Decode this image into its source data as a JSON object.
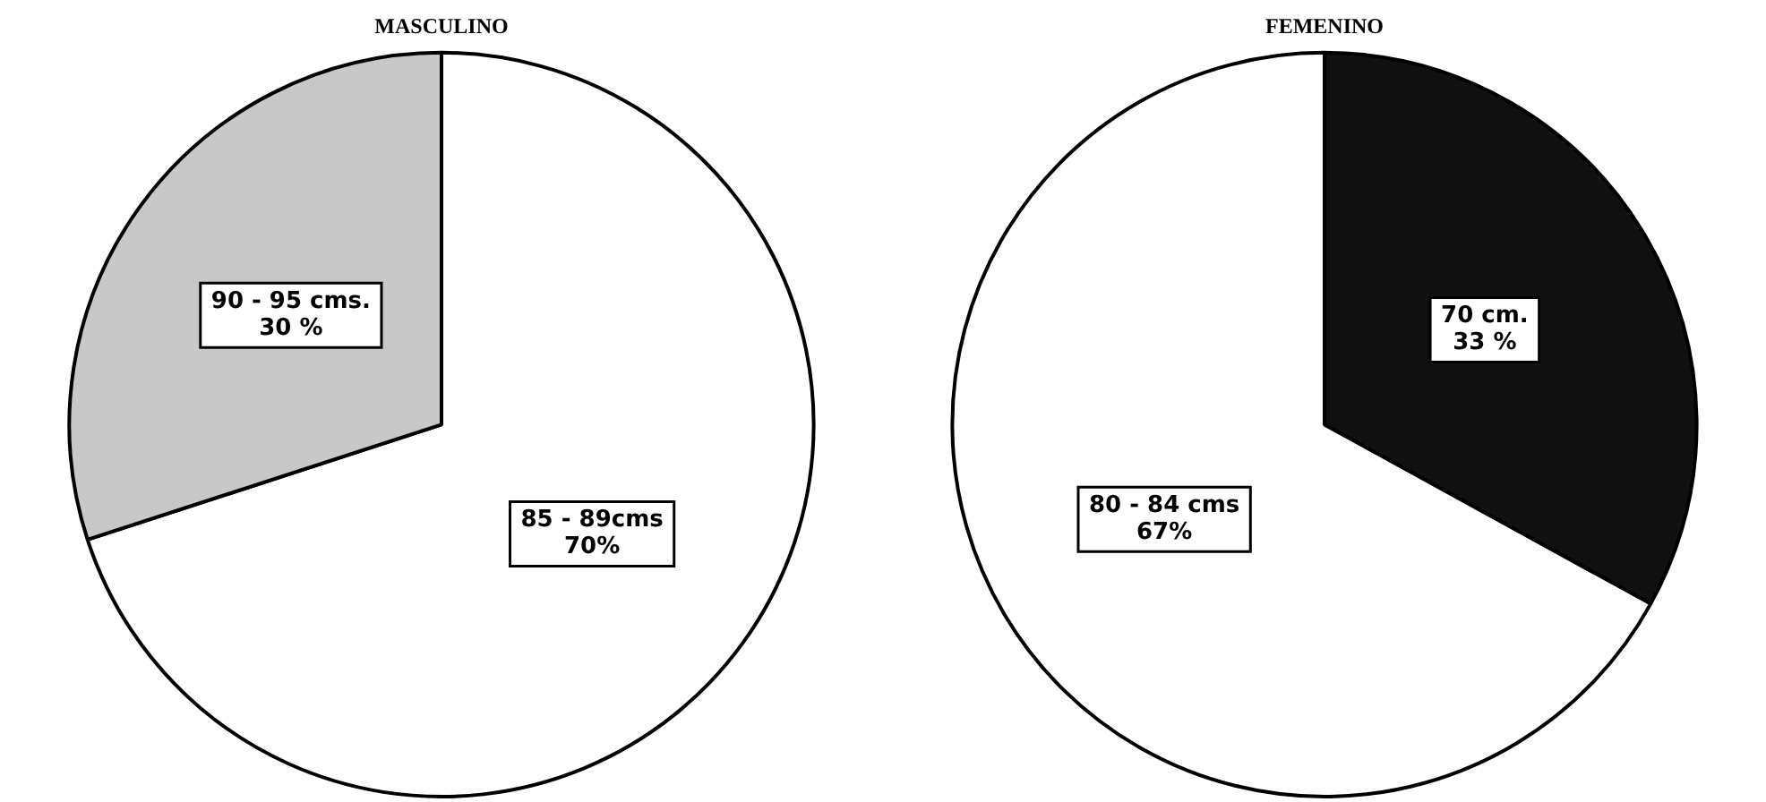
{
  "chart_data": [
    {
      "type": "pie",
      "title": "MASCULINO",
      "categories": [
        "85 - 89cms",
        "90 - 95 cms."
      ],
      "values": [
        70,
        30
      ],
      "colors": [
        "#ffffff",
        "#c8c8c8"
      ],
      "value_labels": [
        "70%",
        "30 %"
      ],
      "legend": false
    },
    {
      "type": "pie",
      "title": "FEMENINO",
      "categories": [
        "70 cm.",
        "80 - 84 cms"
      ],
      "values": [
        33,
        67
      ],
      "colors": [
        "#111111",
        "#ffffff"
      ],
      "value_labels": [
        "33 %",
        "67%"
      ],
      "legend": false
    }
  ]
}
